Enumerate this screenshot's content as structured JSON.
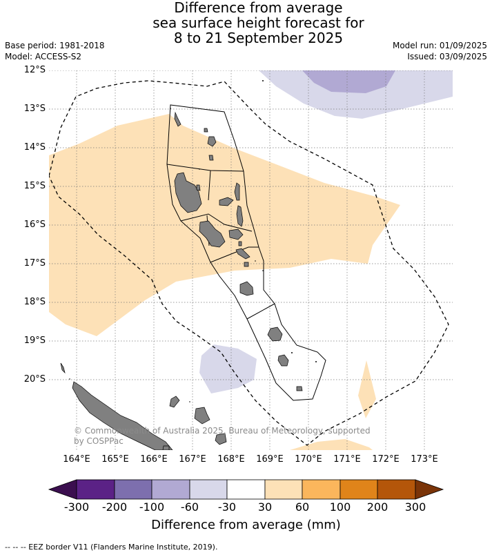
{
  "header": {
    "title_lines": [
      "Difference from average",
      "sea surface height forecast for",
      "8 to 21 September 2025"
    ],
    "base_period": "Base period: 1981-2018",
    "model": "Model: ACCESS-S2",
    "model_run": "Model run: 01/09/2025",
    "issued": "Issued: 03/09/2025"
  },
  "map": {
    "lat_labels": [
      "12°S",
      "13°S",
      "14°S",
      "15°S",
      "16°S",
      "17°S",
      "18°S",
      "19°S",
      "20°S"
    ],
    "lon_labels": [
      "164°E",
      "165°E",
      "166°E",
      "167°E",
      "168°E",
      "169°E",
      "170°E",
      "171°E",
      "172°E",
      "173°E"
    ],
    "copyright": "© Commonwealth of Australia 2025, Bureau of Meteorology, supported by COSPPac",
    "colors": {
      "land": "#808080",
      "positive_light": "#fde1b7",
      "negative_light": "#d8d8ea",
      "negative_mid": "#b1a9d3"
    }
  },
  "colorbar": {
    "ticks": [
      "-300",
      "-200",
      "-100",
      "-60",
      "-30",
      "30",
      "60",
      "100",
      "200",
      "300"
    ],
    "colors": [
      "#3b0f4f",
      "#5b2286",
      "#7d6fae",
      "#b1a9d3",
      "#d8d8ea",
      "#ffffff",
      "#fde1b7",
      "#fbb65c",
      "#e0841a",
      "#b4560a",
      "#7a3408"
    ],
    "label": "Difference from average (mm)"
  },
  "footnote": "--  --  -- EEZ border V11 (Flanders Marine Institute, 2019)."
}
